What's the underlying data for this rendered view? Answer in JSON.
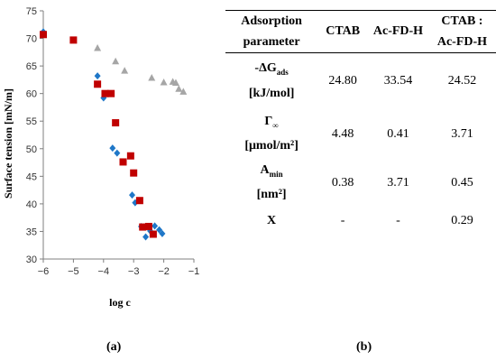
{
  "chart_data": {
    "type": "scatter",
    "xlabel": "log c",
    "ylabel": "Surface tension [mN/m]",
    "xlim": [
      -6,
      -1
    ],
    "ylim": [
      30,
      75
    ],
    "xticks": [
      "−6",
      "−5",
      "−4",
      "−3",
      "−2",
      "−1"
    ],
    "yticks": [
      "30",
      "35",
      "40",
      "45",
      "50",
      "55",
      "60",
      "65",
      "70",
      "75"
    ],
    "grid": false,
    "series": [
      {
        "marker": "diamond",
        "color": "#1f77c8",
        "points": [
          [
            -6.0,
            71.2
          ],
          [
            -4.2,
            63.2
          ],
          [
            -4.0,
            59.2
          ],
          [
            -3.7,
            50.1
          ],
          [
            -3.55,
            49.2
          ],
          [
            -3.05,
            41.6
          ],
          [
            -2.95,
            40.2
          ],
          [
            -2.75,
            35.9
          ],
          [
            -2.6,
            34.0
          ],
          [
            -2.45,
            35.1
          ],
          [
            -2.3,
            36.0
          ],
          [
            -2.15,
            35.3
          ],
          [
            -2.05,
            34.6
          ]
        ]
      },
      {
        "marker": "square",
        "color": "#c00000",
        "points": [
          [
            -6.0,
            70.7
          ],
          [
            -5.0,
            69.7
          ],
          [
            -4.2,
            61.7
          ],
          [
            -3.95,
            60.0
          ],
          [
            -3.75,
            60.0
          ],
          [
            -3.6,
            54.7
          ],
          [
            -3.35,
            47.6
          ],
          [
            -3.1,
            48.7
          ],
          [
            -3.0,
            45.6
          ],
          [
            -2.8,
            40.6
          ],
          [
            -2.7,
            35.8
          ],
          [
            -2.5,
            35.9
          ],
          [
            -2.35,
            34.5
          ]
        ]
      },
      {
        "marker": "triangle",
        "color": "#a6a6a6",
        "points": [
          [
            -4.2,
            68.2
          ],
          [
            -3.6,
            65.8
          ],
          [
            -3.3,
            64.1
          ],
          [
            -2.4,
            62.8
          ],
          [
            -2.0,
            62.0
          ],
          [
            -1.7,
            62.1
          ],
          [
            -1.6,
            61.9
          ],
          [
            -1.5,
            60.8
          ],
          [
            -1.35,
            60.3
          ]
        ]
      }
    ]
  },
  "table": {
    "headers": [
      "Adsorption parameter",
      "CTAB",
      "Ac-FD-H",
      "CTAB : Ac-FD-H"
    ],
    "rows": [
      {
        "label": "-ΔG",
        "label_sub": "ads",
        "label_unit": "[kJ/mol]",
        "values": [
          "24.80",
          "33.54",
          "24.52"
        ]
      },
      {
        "label": "Γ",
        "label_sub": "∞",
        "label_unit": "[μmol/m²]",
        "values": [
          "4.48",
          "0.41",
          "3.71"
        ]
      },
      {
        "label": "A",
        "label_sub": "min",
        "label_unit": "[nm²]",
        "values": [
          "0.38",
          "3.71",
          "0.45"
        ]
      },
      {
        "label": "X",
        "label_sub": "",
        "label_unit": "",
        "values": [
          "-",
          "-",
          "0.29"
        ]
      }
    ]
  },
  "panel_labels": {
    "a": "(a)",
    "b": "(b)"
  }
}
